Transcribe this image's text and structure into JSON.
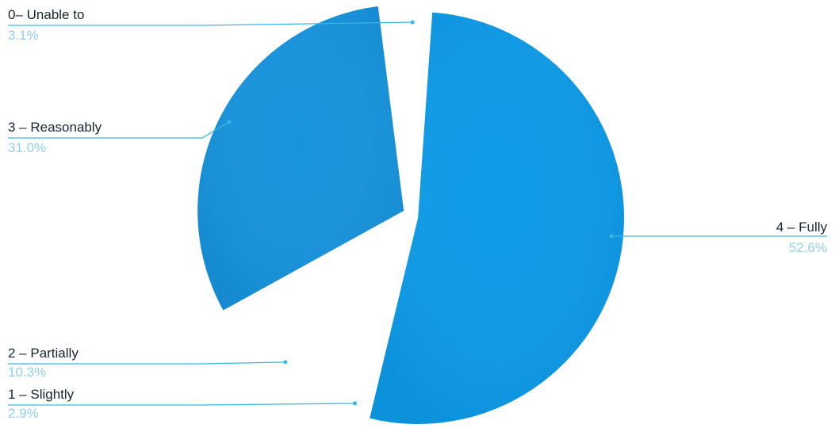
{
  "chart_data": {
    "type": "pie",
    "title": "",
    "start_angle_deg": 4,
    "slices": [
      {
        "label": "4 – Fully",
        "percent": "52.6%",
        "value": 52.6,
        "color": "#0d9be8",
        "exploded": false
      },
      {
        "label": "1 – Slightly",
        "percent": "2.9%",
        "value": 2.9,
        "color": "#ffffff",
        "exploded": false
      },
      {
        "label": "2 – Partially",
        "percent": "10.3%",
        "value": 10.3,
        "color": "#ffffff",
        "exploded": false
      },
      {
        "label": "3 – Reasonably",
        "percent": "31.0%",
        "value": 31.0,
        "color": "#1793dd",
        "exploded": true
      },
      {
        "label": "0– Unable to",
        "percent": "3.1%",
        "value": 3.1,
        "color": "#ffffff",
        "exploded": false
      }
    ],
    "leader_color": "#39b6e4"
  }
}
